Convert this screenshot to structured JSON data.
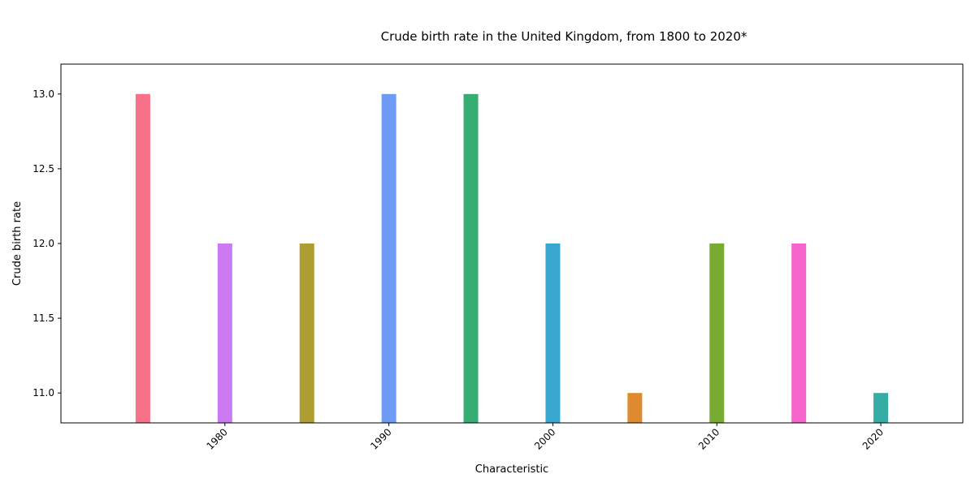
{
  "chart_data": {
    "type": "bar",
    "title": "Crude birth rate in the United Kingdom, from 1800 to 2020*",
    "xlabel": "Characteristic",
    "ylabel": "Crude birth rate",
    "x": [
      1975,
      1980,
      1985,
      1990,
      1995,
      2000,
      2005,
      2010,
      2015,
      2020
    ],
    "values": [
      13,
      12,
      12,
      13,
      13,
      12,
      11,
      12,
      12,
      11
    ],
    "colors": [
      "#f77189",
      "#cc7af4",
      "#ae9d31",
      "#6e9bf4",
      "#36ad73",
      "#39a7d0",
      "#e08a2f",
      "#77ab31",
      "#f565cc",
      "#36ada4"
    ],
    "xlim": [
      1970,
      2025
    ],
    "ylim": [
      10.8,
      13.2
    ],
    "x_ticks": [
      1980,
      1990,
      2000,
      2010,
      2020
    ],
    "x_tick_labels": [
      "1980",
      "1990",
      "2000",
      "2010",
      "2020"
    ],
    "y_ticks": [
      11.0,
      11.5,
      12.0,
      12.5,
      13.0
    ],
    "y_tick_labels": [
      "11.0",
      "11.5",
      "12.0",
      "12.5",
      "13.0"
    ],
    "grid": false,
    "legend": "none"
  }
}
